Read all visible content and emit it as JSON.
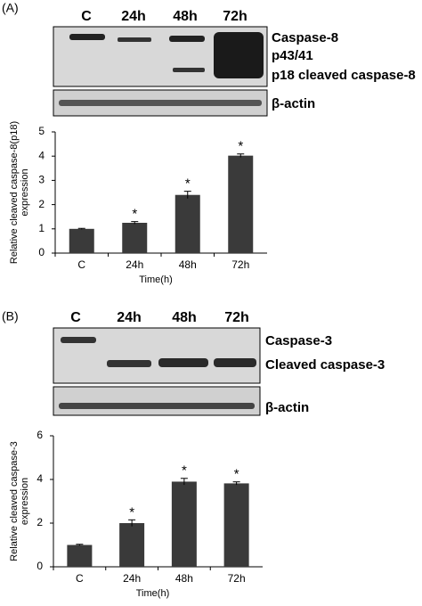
{
  "panels": [
    {
      "label": "(A)",
      "lanes": [
        "C",
        "24h",
        "48h",
        "72h"
      ],
      "bands": [
        "Caspase-8",
        "p43/41",
        "p18 cleaved caspase-8"
      ],
      "loading": "β-actin"
    },
    {
      "label": "(B)",
      "lanes": [
        "C",
        "24h",
        "48h",
        "72h"
      ],
      "bands": [
        "Caspase-3",
        "Cleaved caspase-3"
      ],
      "loading": "β-actin"
    }
  ],
  "chart_data": [
    {
      "type": "bar",
      "ylabel": [
        "Relative cleaved caspase-8(p18)",
        "expression"
      ],
      "xlabel": "Time(h)",
      "categories": [
        "C",
        "24h",
        "48h",
        "72h"
      ],
      "values": [
        1.0,
        1.25,
        2.4,
        4.02
      ],
      "errors": [
        0.02,
        0.05,
        0.15,
        0.07
      ],
      "significance": [
        null,
        "*",
        "*",
        "*"
      ],
      "color": "#3a3a3a",
      "ylim": [
        0,
        5
      ],
      "yticks": [
        0,
        1,
        2,
        3,
        4,
        5
      ]
    },
    {
      "type": "bar",
      "ylabel": [
        "Relative cleaved caspase-3",
        "expression"
      ],
      "xlabel": "Time(h)",
      "categories": [
        "C",
        "24h",
        "48h",
        "72h"
      ],
      "values": [
        1.0,
        2.0,
        3.9,
        3.82
      ],
      "errors": [
        0.03,
        0.15,
        0.15,
        0.07
      ],
      "significance": [
        null,
        "*",
        "*",
        "*"
      ],
      "color": "#3a3a3a",
      "ylim": [
        0,
        6
      ],
      "yticks": [
        0,
        2,
        4,
        6
      ]
    }
  ]
}
